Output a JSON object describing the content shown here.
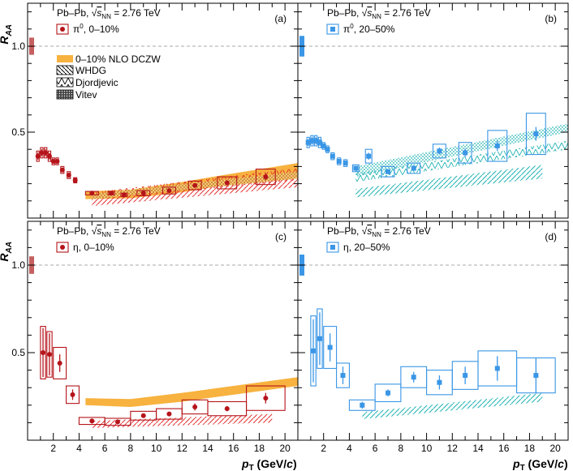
{
  "figure": {
    "xlabel": "p",
    "xlabel_sub": "T",
    "xlabel_unit": " (GeV/",
    "xlabel_c": "c",
    "xlabel_close": ")",
    "ylabel": "R",
    "ylabel_sub": "AA",
    "system": "Pb–Pb, ",
    "energy": " = 2.76 TeV",
    "sqrt_label": "s",
    "sqrt_sub": "NN",
    "x_ticks": [
      "2",
      "4",
      "6",
      "8",
      "10",
      "12",
      "14",
      "16",
      "18",
      "20"
    ],
    "y_ticks": [
      "0.5",
      "1.0"
    ],
    "colors": {
      "red": "#b5141a",
      "blue": "#3a96e6",
      "band": "#f7b23f",
      "whdg": "#e43a3a",
      "whdg_blue": "#28b4b4",
      "djordjevic": "#e0352b",
      "vitev": "#d98a1a",
      "norm_red": "#c66060",
      "norm_blue": "#3a96e6"
    },
    "legend_theory": {
      "dczw": "0–10% NLO DCZW",
      "whdg": "WHDG",
      "djordjevic": "Djordjevic",
      "vitev": "Vitev"
    }
  },
  "chart_data": [
    {
      "type": "scatter",
      "panel": "(a)",
      "series_label": "π",
      "series_sup": "0",
      "centrality": ",  0–10%",
      "color": "red",
      "xlim": [
        0,
        21
      ],
      "ylim": [
        0,
        1.25
      ],
      "points": [
        {
          "x": 0.8,
          "y": 0.36,
          "ey": 0.02,
          "sy": 0.03,
          "bw": 0.2
        },
        {
          "x": 1.1,
          "y": 0.38,
          "ey": 0.02,
          "sy": 0.03,
          "bw": 0.2
        },
        {
          "x": 1.4,
          "y": 0.38,
          "ey": 0.02,
          "sy": 0.03,
          "bw": 0.2
        },
        {
          "x": 1.7,
          "y": 0.36,
          "ey": 0.02,
          "sy": 0.03,
          "bw": 0.2
        },
        {
          "x": 2.0,
          "y": 0.33,
          "ey": 0.01,
          "sy": 0.02,
          "bw": 0.2
        },
        {
          "x": 2.3,
          "y": 0.33,
          "ey": 0.01,
          "sy": 0.02,
          "bw": 0.2
        },
        {
          "x": 2.7,
          "y": 0.28,
          "ey": 0.01,
          "sy": 0.02,
          "bw": 0.25
        },
        {
          "x": 3.2,
          "y": 0.25,
          "ey": 0.01,
          "sy": 0.02,
          "bw": 0.25
        },
        {
          "x": 3.7,
          "y": 0.22,
          "ey": 0.01,
          "sy": 0.015,
          "bw": 0.25
        },
        {
          "x": 5.0,
          "y": 0.145,
          "ey": 0.005,
          "sy": 0.01,
          "bw": 1.0
        },
        {
          "x": 6.5,
          "y": 0.145,
          "ey": 0.005,
          "sy": 0.01,
          "bw": 0.5
        },
        {
          "x": 7.5,
          "y": 0.135,
          "ey": 0.005,
          "sy": 0.01,
          "bw": 0.5
        },
        {
          "x": 9.0,
          "y": 0.145,
          "ey": 0.008,
          "sy": 0.015,
          "bw": 1.0
        },
        {
          "x": 11.0,
          "y": 0.16,
          "ey": 0.01,
          "sy": 0.02,
          "bw": 1.0
        },
        {
          "x": 13.0,
          "y": 0.19,
          "ey": 0.012,
          "sy": 0.025,
          "bw": 1.0
        },
        {
          "x": 15.5,
          "y": 0.205,
          "ey": 0.015,
          "sy": 0.035,
          "bw": 1.5
        },
        {
          "x": 18.5,
          "y": 0.24,
          "ey": 0.02,
          "sy": 0.045,
          "bw": 1.5
        }
      ],
      "norm_unc": [
        0.95,
        1.05
      ],
      "band_dczw": {
        "x": [
          4.5,
          8,
          12,
          16,
          21
        ],
        "lo": [
          0.11,
          0.115,
          0.15,
          0.2,
          0.27
        ],
        "hi": [
          0.155,
          0.165,
          0.21,
          0.26,
          0.32
        ]
      },
      "whdg": {
        "x": [
          5,
          21
        ],
        "lo": [
          0.07,
          0.18
        ],
        "hi": [
          0.11,
          0.25
        ]
      },
      "djordjevic": {
        "x": [
          5,
          21
        ],
        "lo": [
          0.11,
          0.22
        ],
        "hi": [
          0.15,
          0.29
        ]
      },
      "vitev": {
        "x": [
          5,
          21
        ],
        "lo": [
          0.11,
          0.23
        ],
        "hi": [
          0.14,
          0.27
        ]
      }
    },
    {
      "type": "scatter",
      "panel": "(b)",
      "series_label": "π",
      "series_sup": "0",
      "centrality": ", 20–50%",
      "color": "blue",
      "xlim": [
        0,
        21
      ],
      "ylim": [
        0,
        1.25
      ],
      "points": [
        {
          "x": 0.8,
          "y": 0.44,
          "ey": 0.02,
          "sy": 0.03,
          "bw": 0.2
        },
        {
          "x": 1.1,
          "y": 0.45,
          "ey": 0.02,
          "sy": 0.03,
          "bw": 0.2
        },
        {
          "x": 1.4,
          "y": 0.45,
          "ey": 0.02,
          "sy": 0.03,
          "bw": 0.2
        },
        {
          "x": 1.7,
          "y": 0.44,
          "ey": 0.02,
          "sy": 0.03,
          "bw": 0.2
        },
        {
          "x": 2.0,
          "y": 0.42,
          "ey": 0.01,
          "sy": 0.02,
          "bw": 0.2
        },
        {
          "x": 2.3,
          "y": 0.4,
          "ey": 0.01,
          "sy": 0.02,
          "bw": 0.2
        },
        {
          "x": 2.7,
          "y": 0.36,
          "ey": 0.01,
          "sy": 0.02,
          "bw": 0.25
        },
        {
          "x": 3.2,
          "y": 0.33,
          "ey": 0.01,
          "sy": 0.02,
          "bw": 0.25
        },
        {
          "x": 3.7,
          "y": 0.32,
          "ey": 0.01,
          "sy": 0.02,
          "bw": 0.25
        },
        {
          "x": 4.5,
          "y": 0.29,
          "ey": 0.01,
          "sy": 0.02,
          "bw": 0.5
        },
        {
          "x": 5.5,
          "y": 0.36,
          "ey": 0.02,
          "sy": 0.04,
          "bw": 0.5
        },
        {
          "x": 7.0,
          "y": 0.27,
          "ey": 0.01,
          "sy": 0.03,
          "bw": 1.0
        },
        {
          "x": 9.0,
          "y": 0.29,
          "ey": 0.015,
          "sy": 0.03,
          "bw": 1.0
        },
        {
          "x": 11.0,
          "y": 0.39,
          "ey": 0.02,
          "sy": 0.04,
          "bw": 1.0
        },
        {
          "x": 13.0,
          "y": 0.38,
          "ey": 0.025,
          "sy": 0.06,
          "bw": 1.0
        },
        {
          "x": 15.5,
          "y": 0.42,
          "ey": 0.03,
          "sy": 0.09,
          "bw": 1.5
        },
        {
          "x": 18.5,
          "y": 0.49,
          "ey": 0.04,
          "sy": 0.12,
          "bw": 1.5
        }
      ],
      "norm_unc": [
        0.94,
        1.06
      ],
      "whdg": {
        "x": [
          4.5,
          19
        ],
        "lo": [
          0.12,
          0.23
        ],
        "hi": [
          0.17,
          0.31
        ]
      },
      "djordjevic": {
        "x": [
          4.5,
          21
        ],
        "lo": [
          0.21,
          0.4
        ],
        "hi": [
          0.26,
          0.45
        ]
      },
      "vitev": {
        "x": [
          4.5,
          21
        ],
        "lo": [
          0.24,
          0.5
        ],
        "hi": [
          0.3,
          0.55
        ]
      }
    },
    {
      "type": "scatter",
      "panel": "(c)",
      "series_label": "η",
      "series_sup": "",
      "centrality": ",  0–10%",
      "color": "red",
      "xlim": [
        0,
        21
      ],
      "ylim": [
        0,
        1.25
      ],
      "points": [
        {
          "x": 1.2,
          "y": 0.5,
          "ey": 0.14,
          "sy": 0.15,
          "bw": 0.4
        },
        {
          "x": 1.7,
          "y": 0.49,
          "ey": 0.12,
          "sy": 0.13,
          "bw": 0.4
        },
        {
          "x": 2.5,
          "y": 0.44,
          "ey": 0.05,
          "sy": 0.09,
          "bw": 1.0
        },
        {
          "x": 3.5,
          "y": 0.26,
          "ey": 0.03,
          "sy": 0.05,
          "bw": 1.0
        },
        {
          "x": 5.0,
          "y": 0.11,
          "ey": 0.005,
          "sy": 0.02,
          "bw": 2.0
        },
        {
          "x": 7.0,
          "y": 0.105,
          "ey": 0.005,
          "sy": 0.02,
          "bw": 2.0
        },
        {
          "x": 9.0,
          "y": 0.14,
          "ey": 0.008,
          "sy": 0.025,
          "bw": 2.0
        },
        {
          "x": 11.0,
          "y": 0.15,
          "ey": 0.01,
          "sy": 0.03,
          "bw": 2.0
        },
        {
          "x": 13.0,
          "y": 0.19,
          "ey": 0.02,
          "sy": 0.04,
          "bw": 2.0
        },
        {
          "x": 15.5,
          "y": 0.18,
          "ey": 0.015,
          "sy": 0.04,
          "bw": 3.0
        },
        {
          "x": 18.5,
          "y": 0.24,
          "ey": 0.03,
          "sy": 0.07,
          "bw": 3.0
        }
      ],
      "norm_unc": [
        0.95,
        1.05
      ],
      "band_dczw": {
        "x": [
          4.5,
          8,
          12,
          16,
          21
        ],
        "lo": [
          0.2,
          0.19,
          0.22,
          0.26,
          0.31
        ],
        "hi": [
          0.24,
          0.235,
          0.27,
          0.31,
          0.36
        ]
      },
      "whdg": {
        "x": [
          5,
          19
        ],
        "lo": [
          0.07,
          0.1
        ],
        "hi": [
          0.11,
          0.15
        ]
      }
    },
    {
      "type": "scatter",
      "panel": "(d)",
      "series_label": "η",
      "series_sup": "",
      "centrality": ", 20–50%",
      "color": "blue",
      "xlim": [
        0,
        21
      ],
      "ylim": [
        0,
        1.25
      ],
      "points": [
        {
          "x": 1.2,
          "y": 0.51,
          "ey": 0.18,
          "sy": 0.2,
          "bw": 0.4
        },
        {
          "x": 1.7,
          "y": 0.58,
          "ey": 0.15,
          "sy": 0.17,
          "bw": 0.4
        },
        {
          "x": 2.5,
          "y": 0.53,
          "ey": 0.08,
          "sy": 0.12,
          "bw": 1.0
        },
        {
          "x": 3.5,
          "y": 0.37,
          "ey": 0.05,
          "sy": 0.07,
          "bw": 1.0
        },
        {
          "x": 5.0,
          "y": 0.2,
          "ey": 0.02,
          "sy": 0.03,
          "bw": 2.0
        },
        {
          "x": 7.0,
          "y": 0.27,
          "ey": 0.02,
          "sy": 0.05,
          "bw": 2.0
        },
        {
          "x": 9.0,
          "y": 0.36,
          "ey": 0.03,
          "sy": 0.06,
          "bw": 2.0
        },
        {
          "x": 11.0,
          "y": 0.33,
          "ey": 0.04,
          "sy": 0.07,
          "bw": 2.0
        },
        {
          "x": 13.0,
          "y": 0.37,
          "ey": 0.05,
          "sy": 0.08,
          "bw": 2.0
        },
        {
          "x": 15.5,
          "y": 0.41,
          "ey": 0.07,
          "sy": 0.1,
          "bw": 3.0
        },
        {
          "x": 18.5,
          "y": 0.37,
          "ey": 0.1,
          "sy": 0.1,
          "bw": 3.0
        }
      ],
      "norm_unc": [
        0.94,
        1.06
      ],
      "whdg": {
        "x": [
          5,
          19
        ],
        "lo": [
          0.12,
          0.22
        ],
        "hi": [
          0.16,
          0.27
        ]
      }
    }
  ]
}
